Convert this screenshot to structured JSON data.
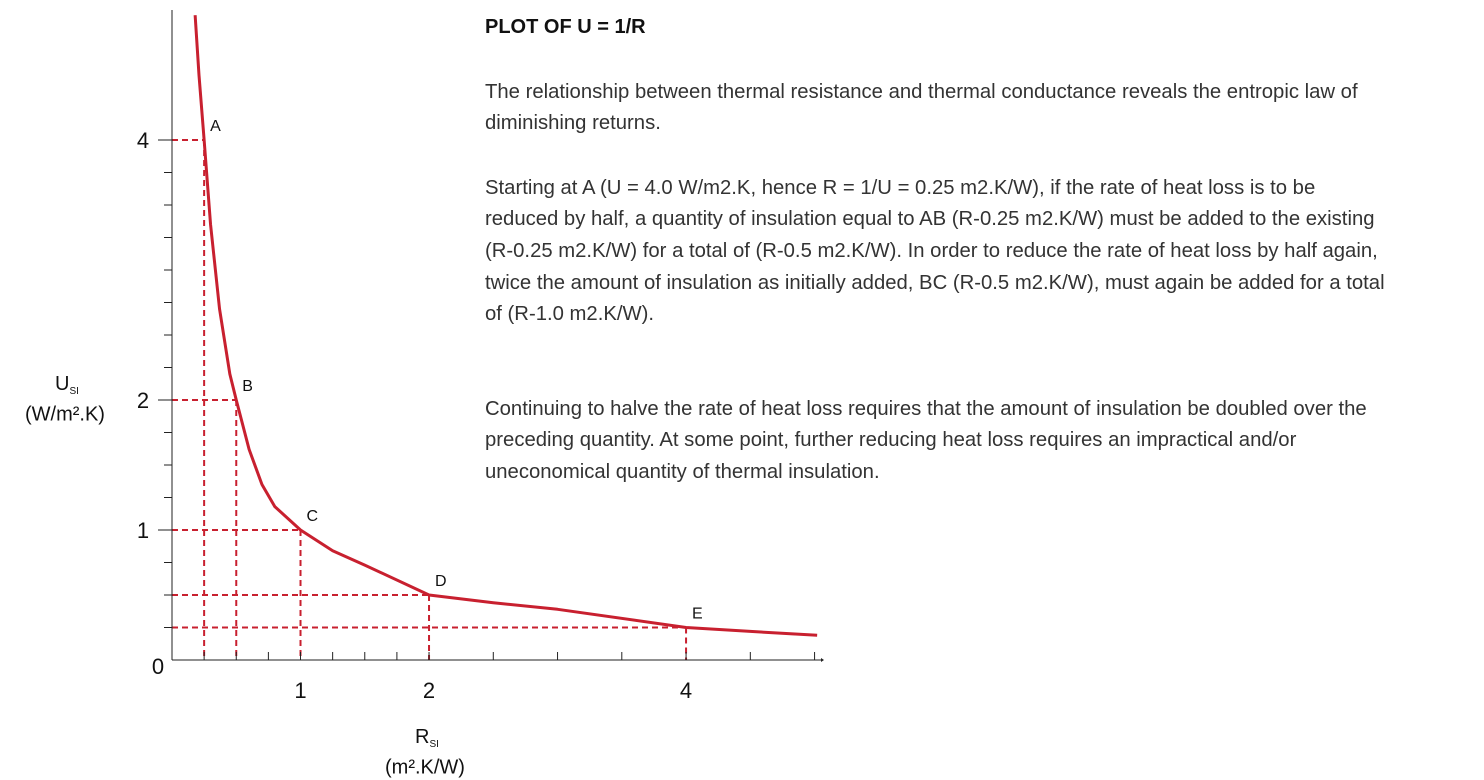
{
  "chart_data": {
    "type": "line",
    "xlabel": {
      "main": "R",
      "sub": "SI",
      "unit": "(m².K/W)"
    },
    "ylabel": {
      "main": "U",
      "sub": "SI",
      "unit": "(W/m².K)"
    },
    "origin_label": "0",
    "xlim": [
      0,
      5.05
    ],
    "ylim": [
      0,
      5
    ],
    "xticks": [
      1,
      2,
      4
    ],
    "yticks": [
      1,
      2,
      4
    ],
    "xminor_ticks": [
      0.25,
      0.5,
      0.75,
      1,
      1.25,
      1.5,
      1.75,
      2,
      2.5,
      3,
      3.5,
      4,
      4.5,
      5
    ],
    "yminor_ticks": [
      0.25,
      0.5,
      0.75,
      1,
      1.25,
      1.5,
      1.75,
      2,
      2.25,
      2.5,
      2.75,
      3,
      3.25,
      3.5,
      3.75,
      4
    ],
    "color": "#c8202f",
    "curve": {
      "x": [
        0.18,
        0.21,
        0.25,
        0.3,
        0.37,
        0.45,
        0.5,
        0.6,
        0.7,
        0.8,
        1,
        1.25,
        1.5,
        2,
        2.5,
        3,
        4,
        4.5,
        5.02
      ],
      "values": [
        4.96,
        4.5,
        4,
        3.35,
        2.7,
        2.2,
        2,
        1.62,
        1.35,
        1.18,
        1,
        0.84,
        0.73,
        0.5,
        0.44,
        0.39,
        0.25,
        0.22,
        0.19
      ]
    },
    "points": {
      "labels": [
        "A",
        "B",
        "C",
        "D",
        "E"
      ],
      "x": [
        0.25,
        0.5,
        1,
        2,
        4
      ],
      "values": [
        4,
        2,
        1,
        0.5,
        0.25
      ]
    }
  },
  "text": {
    "title": "PLOT OF U = 1/R",
    "paragraphs": [
      "The relationship between thermal resistance and thermal conductance reveals the entropic law of diminishing returns.",
      "Starting at A (U = 4.0 W/m2.K, hence R = 1/U = 0.25 m2.K/W), if the rate of heat loss is to be reduced by half, a quantity of insulation equal to AB (R-0.25 m2.K/W) must be added to the existing (R-0.25 m2.K/W) for a total of (R-0.5 m2.K/W). In order to reduce the rate of heat loss by half again, twice the amount of insulation as initially added, BC (R-0.5 m2.K/W), must again be added for a total of (R-1.0 m2.K/W).",
      "Continuing to halve the rate of heat loss requires that the amount of insulation be doubled over the preceding quantity. At some point, further reducing heat loss requires an impractical and/or uneconomical quantity of thermal insulation."
    ]
  }
}
